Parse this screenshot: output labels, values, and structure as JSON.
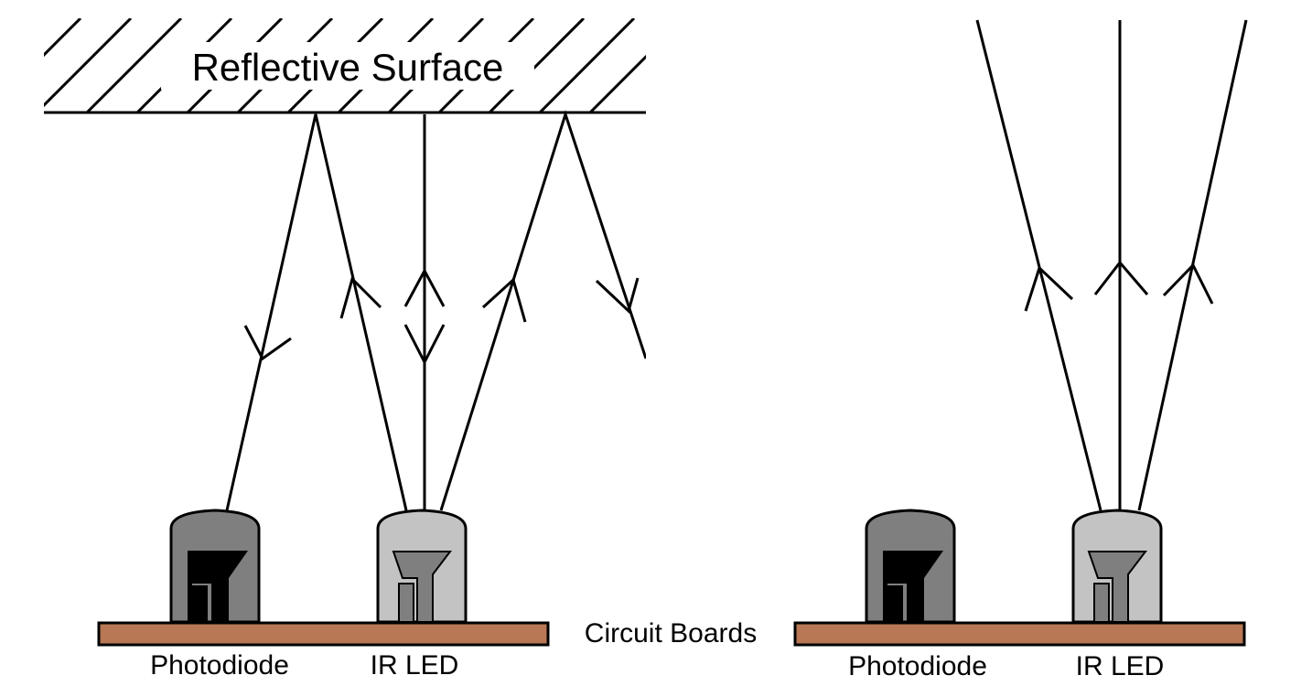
{
  "surface": {
    "label": "Reflective Surface"
  },
  "boards_label": "Circuit Boards",
  "left_setup": {
    "photodiode_label": "Photodiode",
    "led_label": "IR LED"
  },
  "right_setup": {
    "photodiode_label": "Photodiode",
    "led_label": "IR LED"
  },
  "colors": {
    "board": "#b87755",
    "photodiode": "#7f7f7f",
    "led": "#c3c3c3"
  }
}
